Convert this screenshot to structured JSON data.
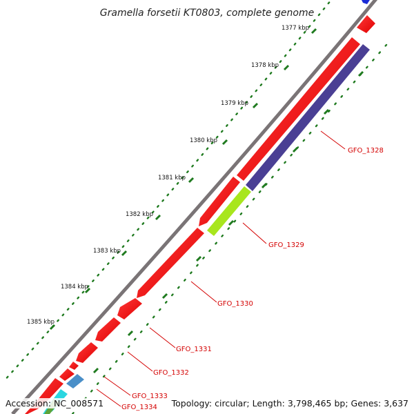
{
  "map": {
    "title": "Gramella forsetii KT0803, complete genome",
    "ruler": [
      "1377 kbp",
      "1378 kbp",
      "1379 kbp",
      "1380 kbp",
      "1381 kbp",
      "1382 kbp",
      "1383 kbp",
      "1384 kbp",
      "1385 kbp"
    ],
    "genes": [
      {
        "label": "GFO_1328",
        "color": "#4a3f94"
      },
      {
        "label": "GFO_1329",
        "color": "#a8e61d"
      },
      {
        "label": "GFO_1330",
        "color": "#ff0000"
      },
      {
        "label": "GFO_1331",
        "color": "#ff0000"
      },
      {
        "label": "GFO_1332",
        "color": "#ff0000"
      },
      {
        "label": "GFO_1333",
        "color": "#ff0000"
      },
      {
        "label": "GFO_1334",
        "color": "#4a8fc8"
      }
    ],
    "colors": {
      "backbone": "#7a7476",
      "forward_cds": "#ff0000",
      "ruler_dots": "#1f7a1f",
      "label_text": "#d40000"
    }
  },
  "footer": {
    "accession": "Accession: NC_008571",
    "topology": "Topology: circular; Length: 3,798,465 bp; Genes: 3,637"
  }
}
